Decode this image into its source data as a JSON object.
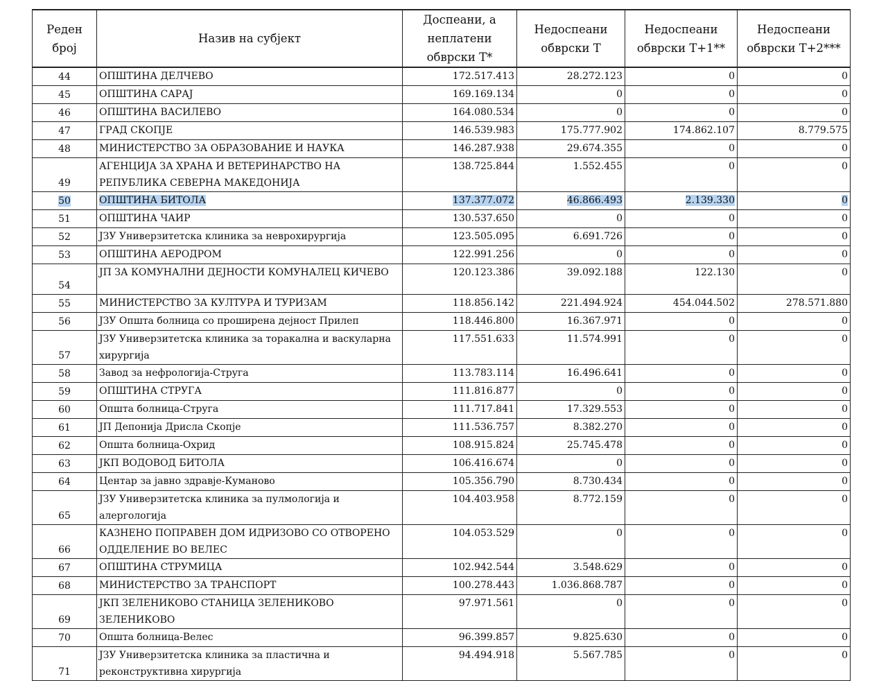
{
  "table": {
    "headers": [
      "Реден број",
      "Назив на субјект",
      "Доспеани, а неплатени обврски Т*",
      "Недоспеани обврски Т",
      "Недоспеани обврски Т+1**",
      "Недоспеани обврски Т+2***"
    ],
    "rows": [
      {
        "no": "44",
        "name": "ОПШТИНА ДЕЛЧЕВО",
        "due_unpaid": "172.517.413",
        "not_due_t": "28.272.123",
        "not_due_t1": "0",
        "not_due_t2": "0"
      },
      {
        "no": "45",
        "name": "ОПШТИНА САРАЈ",
        "due_unpaid": "169.169.134",
        "not_due_t": "0",
        "not_due_t1": "0",
        "not_due_t2": "0"
      },
      {
        "no": "46",
        "name": "ОПШТИНА ВАСИЛЕВО",
        "due_unpaid": "164.080.534",
        "not_due_t": "0",
        "not_due_t1": "0",
        "not_due_t2": "0"
      },
      {
        "no": "47",
        "name": "ГРАД СКОПЈЕ",
        "due_unpaid": "146.539.983",
        "not_due_t": "175.777.902",
        "not_due_t1": "174.862.107",
        "not_due_t2": "8.779.575"
      },
      {
        "no": "48",
        "name": "МИНИСТЕРСТВО ЗА ОБРАЗОВАНИЕ И НАУКА",
        "due_unpaid": "146.287.938",
        "not_due_t": "29.674.355",
        "not_due_t1": "0",
        "not_due_t2": "0"
      },
      {
        "no": "49",
        "name": "АГЕНЦИЈА ЗА ХРАНА И ВЕТЕРИНАРСТВО НА РЕПУБЛИКА СЕВЕРНА МАКЕДОНИЈА",
        "due_unpaid": "138.725.844",
        "not_due_t": "1.552.455",
        "not_due_t1": "0",
        "not_due_t2": "0",
        "tall": true
      },
      {
        "no": "50",
        "name": "ОПШТИНА БИТОЛА",
        "due_unpaid": "137.377.072",
        "not_due_t": "46.866.493",
        "not_due_t1": "2.139.330",
        "not_due_t2": "0",
        "highlight": true
      },
      {
        "no": "51",
        "name": "ОПШТИНА ЧАИР",
        "due_unpaid": "130.537.650",
        "not_due_t": "0",
        "not_due_t1": "0",
        "not_due_t2": "0"
      },
      {
        "no": "52",
        "name": "ЈЗУ Универзитетска клиника за неврохирургија",
        "due_unpaid": "123.505.095",
        "not_due_t": "6.691.726",
        "not_due_t1": "0",
        "not_due_t2": "0"
      },
      {
        "no": "53",
        "name": "ОПШТИНА АЕРОДРОМ",
        "due_unpaid": "122.991.256",
        "not_due_t": "0",
        "not_due_t1": "0",
        "not_due_t2": "0"
      },
      {
        "no": "54",
        "name": "ЈП ЗА КОМУНАЛНИ ДЕЈНОСТИ КОМУНАЛЕЦ КИЧЕВО",
        "due_unpaid": "120.123.386",
        "not_due_t": "39.092.188",
        "not_due_t1": "122.130",
        "not_due_t2": "0",
        "tall": true
      },
      {
        "no": "55",
        "name": "МИНИСТЕРСТВО ЗА КУЛТУРА И ТУРИЗАМ",
        "due_unpaid": "118.856.142",
        "not_due_t": "221.494.924",
        "not_due_t1": "454.044.502",
        "not_due_t2": "278.571.880"
      },
      {
        "no": "56",
        "name": "ЈЗУ Општа болница со проширена дејност Прилеп",
        "due_unpaid": "118.446.800",
        "not_due_t": "16.367.971",
        "not_due_t1": "0",
        "not_due_t2": "0"
      },
      {
        "no": "57",
        "name": "ЈЗУ Универзитетска клиника за торакална и васкуларна хирургија",
        "due_unpaid": "117.551.633",
        "not_due_t": "11.574.991",
        "not_due_t1": "0",
        "not_due_t2": "0",
        "tall": true
      },
      {
        "no": "58",
        "name": "Завод за нефрологија-Струга",
        "due_unpaid": "113.783.114",
        "not_due_t": "16.496.641",
        "not_due_t1": "0",
        "not_due_t2": "0"
      },
      {
        "no": "59",
        "name": "ОПШТИНА СТРУГА",
        "due_unpaid": "111.816.877",
        "not_due_t": "0",
        "not_due_t1": "0",
        "not_due_t2": "0"
      },
      {
        "no": "60",
        "name": "Општа болница-Струга",
        "due_unpaid": "111.717.841",
        "not_due_t": "17.329.553",
        "not_due_t1": "0",
        "not_due_t2": "0"
      },
      {
        "no": "61",
        "name": "ЈП Депонија Дрисла Скопје",
        "due_unpaid": "111.536.757",
        "not_due_t": "8.382.270",
        "not_due_t1": "0",
        "not_due_t2": "0"
      },
      {
        "no": "62",
        "name": "Општа болница-Охрид",
        "due_unpaid": "108.915.824",
        "not_due_t": "25.745.478",
        "not_due_t1": "0",
        "not_due_t2": "0"
      },
      {
        "no": "63",
        "name": "ЈКП  ВОДОВОД БИТОЛА",
        "due_unpaid": "106.416.674",
        "not_due_t": "0",
        "not_due_t1": "0",
        "not_due_t2": "0"
      },
      {
        "no": "64",
        "name": "Центар за јавно здравје-Куманово",
        "due_unpaid": "105.356.790",
        "not_due_t": "8.730.434",
        "not_due_t1": "0",
        "not_due_t2": "0"
      },
      {
        "no": "65",
        "name": "ЈЗУ Универзитетска клиника за пулмологија и алергологија",
        "due_unpaid": "104.403.958",
        "not_due_t": "8.772.159",
        "not_due_t1": "0",
        "not_due_t2": "0",
        "tall": true
      },
      {
        "no": "66",
        "name": "КАЗНЕНО ПОПРАВЕН ДОМ ИДРИЗОВО СО ОТВОРЕНО ОДДЕЛЕНИЕ ВО ВЕЛЕС",
        "due_unpaid": "104.053.529",
        "not_due_t": "0",
        "not_due_t1": "0",
        "not_due_t2": "0",
        "tall": true
      },
      {
        "no": "67",
        "name": "ОПШТИНА СТРУМИЦА",
        "due_unpaid": "102.942.544",
        "not_due_t": "3.548.629",
        "not_due_t1": "0",
        "not_due_t2": "0"
      },
      {
        "no": "68",
        "name": "МИНИСТЕРСТВО ЗА ТРАНСПОРТ",
        "due_unpaid": "100.278.443",
        "not_due_t": "1.036.868.787",
        "not_due_t1": "0",
        "not_due_t2": "0"
      },
      {
        "no": "69",
        "name": "ЈКП ЗЕЛЕНИКОВО СТАНИЦА ЗЕЛЕНИКОВО ЗЕЛЕНИКОВО",
        "due_unpaid": "97.971.561",
        "not_due_t": "0",
        "not_due_t1": "0",
        "not_due_t2": "0",
        "tall": true
      },
      {
        "no": "70",
        "name": "Општа болница-Велес",
        "due_unpaid": "96.399.857",
        "not_due_t": "9.825.630",
        "not_due_t1": "0",
        "not_due_t2": "0"
      },
      {
        "no": "71",
        "name": "ЈЗУ Универзитетска клиника за пластична и реконструктивна хирургија",
        "due_unpaid": "94.494.918",
        "not_due_t": "5.567.785",
        "not_due_t1": "0",
        "not_due_t2": "0",
        "tall": true
      }
    ]
  }
}
